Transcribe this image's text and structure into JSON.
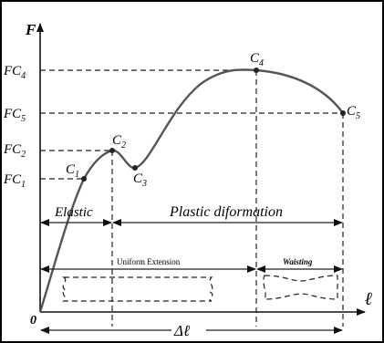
{
  "axes": {
    "y_label": "F",
    "x_label": "ℓ",
    "origin": "0"
  },
  "y_levels": [
    {
      "main": "FC",
      "sub": "4"
    },
    {
      "main": "FC",
      "sub": "5"
    },
    {
      "main": "FC",
      "sub": "2"
    },
    {
      "main": "FC",
      "sub": "1"
    }
  ],
  "points": [
    {
      "main": "C",
      "sub": "1"
    },
    {
      "main": "C",
      "sub": "2"
    },
    {
      "main": "C",
      "sub": "3"
    },
    {
      "main": "C",
      "sub": "4"
    },
    {
      "main": "C",
      "sub": "5"
    }
  ],
  "regions": {
    "elastic": "Elastic",
    "plastic": "Plastic diformation",
    "uniform": "Uniform Extension",
    "waisting": "Waisting"
  },
  "delta": "Δℓ"
}
